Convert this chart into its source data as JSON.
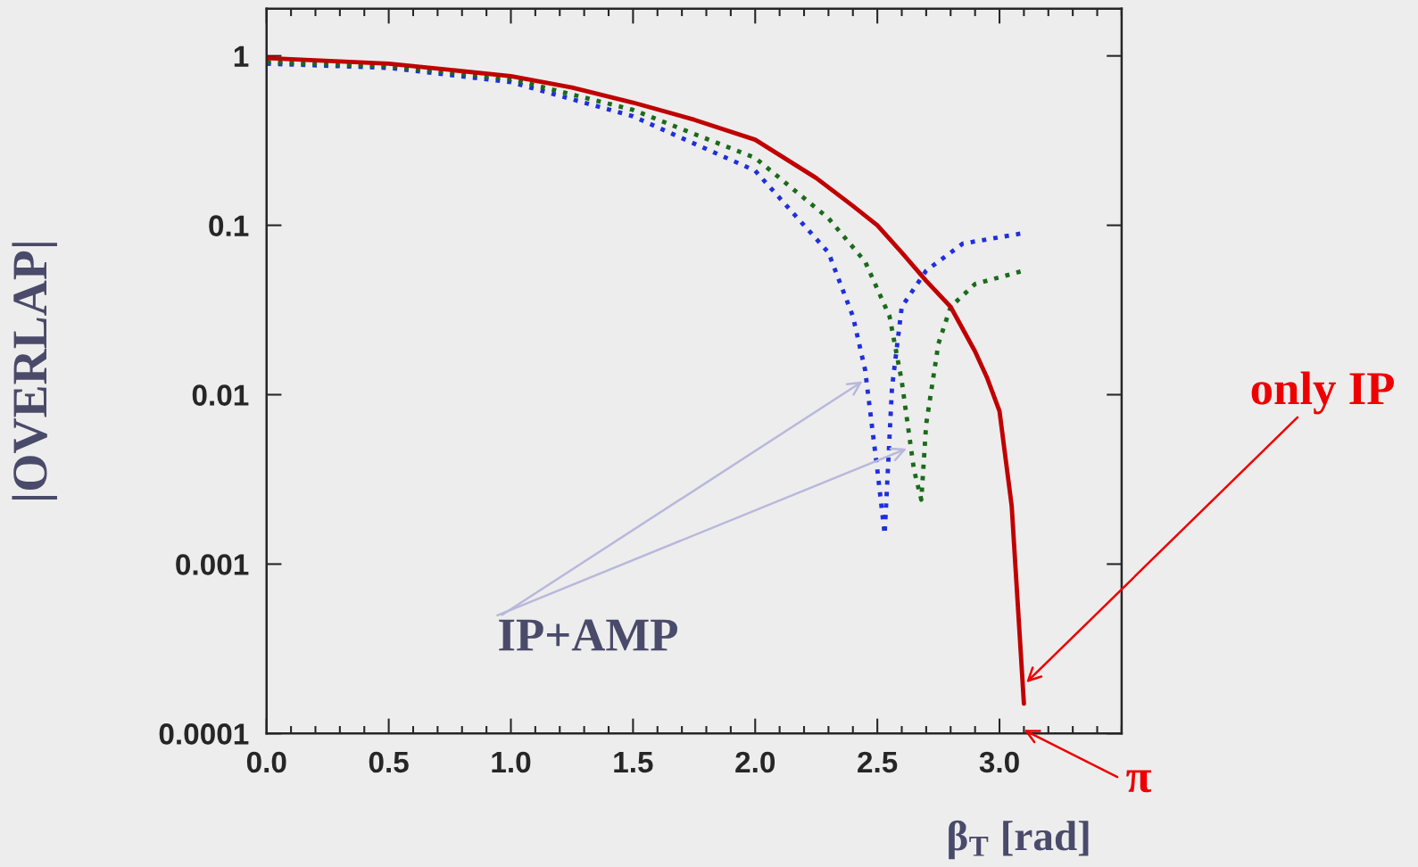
{
  "chart_data": {
    "type": "line",
    "xlabel": "β$_{T}$ [rad]",
    "ylabel": "|OVERLAP|",
    "log": "y",
    "grid": false,
    "legend": false,
    "marker": "none",
    "xlim": [
      0,
      3.5
    ],
    "ylim": [
      0.0001,
      1.9
    ],
    "xticks": [
      {
        "value": 0,
        "label": "0.0"
      },
      0.5,
      {
        "value": 1,
        "label": "1.0"
      },
      1.5,
      {
        "value": 2,
        "label": "2.0"
      },
      2.5,
      {
        "value": 3,
        "label": "3.0"
      }
    ],
    "yticks": [
      0.0001,
      0.001,
      0.01,
      0.1,
      1
    ],
    "series": [
      {
        "color": "#1f2fdd",
        "line_style": "dotted",
        "x": [
          0,
          0.5,
          1.0,
          1.5,
          2.0,
          2.3,
          2.4,
          2.45,
          2.5,
          2.53,
          2.56,
          2.6,
          2.7,
          2.85,
          3.1
        ],
        "values": [
          0.9,
          0.85,
          0.7,
          0.44,
          0.21,
          0.069,
          0.029,
          0.014,
          0.0036,
          0.0015,
          0.011,
          0.033,
          0.054,
          0.078,
          0.09
        ]
      },
      {
        "color": "#1a6b1a",
        "line_style": "dotted",
        "x": [
          0,
          0.5,
          1.0,
          1.5,
          2.0,
          2.3,
          2.45,
          2.55,
          2.6,
          2.65,
          2.68,
          2.7,
          2.75,
          2.8,
          2.9,
          3.1
        ],
        "values": [
          0.92,
          0.87,
          0.73,
          0.48,
          0.25,
          0.11,
          0.061,
          0.029,
          0.012,
          0.0036,
          0.0024,
          0.0067,
          0.02,
          0.033,
          0.045,
          0.054
        ]
      },
      {
        "color": "#c00000",
        "line_style": "solid",
        "x": [
          0,
          0.5,
          1.0,
          1.25,
          1.5,
          1.75,
          2.0,
          2.25,
          2.4,
          2.5,
          2.6,
          2.7,
          2.8,
          2.9,
          2.95,
          3.0,
          3.05,
          3.1
        ],
        "values": [
          0.97,
          0.9,
          0.76,
          0.65,
          0.53,
          0.42,
          0.32,
          0.19,
          0.13,
          0.1,
          0.069,
          0.047,
          0.033,
          0.018,
          0.0125,
          0.008,
          0.0022,
          0.00015
        ]
      }
    ],
    "annotations": [
      {
        "text": "IP+AMP",
        "x": 2.44,
        "y": 0.012
      },
      {
        "text": "only IP",
        "x": 3.11,
        "y": 0.0002
      },
      "π"
    ]
  }
}
